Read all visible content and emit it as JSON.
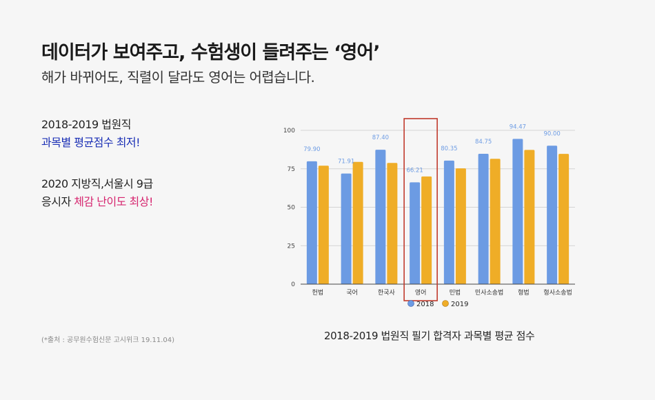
{
  "heading": {
    "title": "데이터가 보여주고, 수험생이 들려주는 ‘영어’",
    "subtitle": "해가 바뀌어도, 직렬이 달라도 영어는 어렵습니다."
  },
  "notes": {
    "n1_line1": "2018-2019 법원직",
    "n1_line2": "과목별 평균점수 최저!",
    "n2_line1": "2020 지방직,서울시 9급",
    "n2_line2_prefix": "응시자 ",
    "n2_line2_highlight": "체감 난이도 최상!"
  },
  "source": "(*출처 : 공무원수험신문 고시위크 19.11.04)",
  "chart_caption": "2018-2019 법원직 필기 합격자 과목별 평균 점수",
  "colors": {
    "series_2018": "#6c9be3",
    "series_2019": "#efad27",
    "label_2018": "#6c9be3",
    "highlight_box": "#c0392b",
    "grid": "#d4d4d4",
    "axis": "#444444"
  },
  "chart_data": {
    "type": "bar",
    "categories": [
      "헌법",
      "국어",
      "한국사",
      "영어",
      "민법",
      "민사소송법",
      "형법",
      "형사소송법"
    ],
    "series": [
      {
        "name": "2018",
        "values": [
          79.9,
          71.91,
          87.4,
          66.21,
          80.35,
          84.75,
          94.47,
          90.0
        ]
      },
      {
        "name": "2019",
        "values": [
          77.0,
          79.5,
          78.8,
          70.0,
          75.3,
          81.5,
          87.3,
          84.7
        ]
      }
    ],
    "data_labels_2018": [
      "79.90",
      "71.91",
      "87.40",
      "66.21",
      "80.35",
      "84.75",
      "94.47",
      "90.00"
    ],
    "yticks": [
      "0",
      "25",
      "50",
      "75",
      "100"
    ],
    "ylim": [
      0,
      100
    ],
    "grid": true,
    "legend_position": "bottom",
    "highlighted_category": "영어"
  }
}
